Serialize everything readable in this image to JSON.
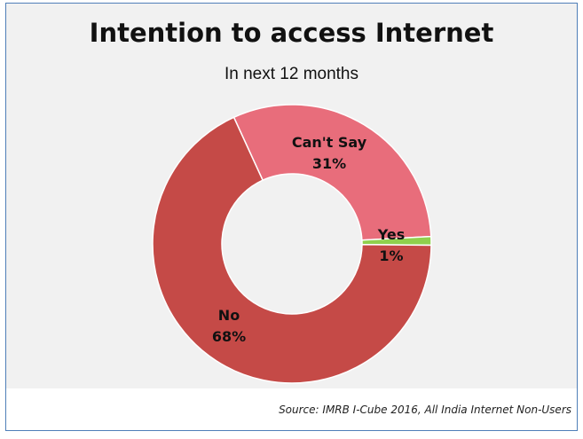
{
  "chart_data": {
    "type": "pie",
    "style": "donut",
    "title": "Intention to access Internet",
    "subtitle": "In next 12 months",
    "categories": [
      "Can't Say",
      "Yes",
      "No"
    ],
    "values": [
      31,
      1,
      68
    ],
    "labels": [
      "31%",
      "1%",
      "68%"
    ],
    "colors": [
      "#e86d7b",
      "#8fd04d",
      "#c54a47"
    ],
    "legend": "none",
    "source": "Source: IMRB I-Cube 2016, All India Internet Non-Users"
  },
  "colors": {
    "plot_background": "#f1f1f1",
    "border": "#4f7fb8",
    "slice_edge": "#ffffff"
  }
}
